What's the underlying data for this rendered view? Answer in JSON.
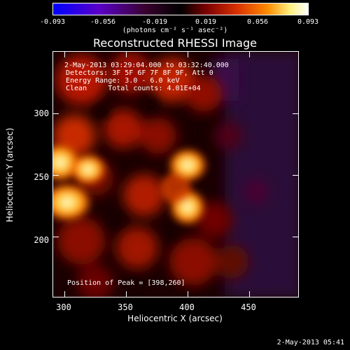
{
  "colorbar": {
    "ticks": [
      "-0.093",
      "-0.056",
      "-0.019",
      "0.019",
      "0.056",
      "0.093"
    ],
    "units": "(photons cm⁻² s⁻¹ asec⁻²)",
    "colors": [
      "#0000ff",
      "#5a00c8",
      "#3a0030",
      "#000000",
      "#7a0000",
      "#d83000",
      "#ff8a00",
      "#fff080",
      "#ffffff"
    ]
  },
  "title": "Reconstructed RHESSI Image",
  "info": {
    "line1": " 2-May-2013 03:29:04.000 to 03:32:40.000",
    "line2": "Detectors: 3F 5F 6F 7F 8F 9F, Att 0",
    "line3": "Energy Range: 3.0 - 6.0 keV",
    "line4": "Clean     Total counts: 4.01E+04"
  },
  "peak_label": "Position of Peak = [398,260]",
  "axes": {
    "xlabel": "Heliocentric X (arcsec)",
    "ylabel": "Heliocentric Y (arcsec)",
    "xticks": [
      "300",
      "350",
      "400",
      "450"
    ],
    "yticks": [
      "300",
      "250",
      "200"
    ]
  },
  "footer": "2-May-2013 05:41"
}
